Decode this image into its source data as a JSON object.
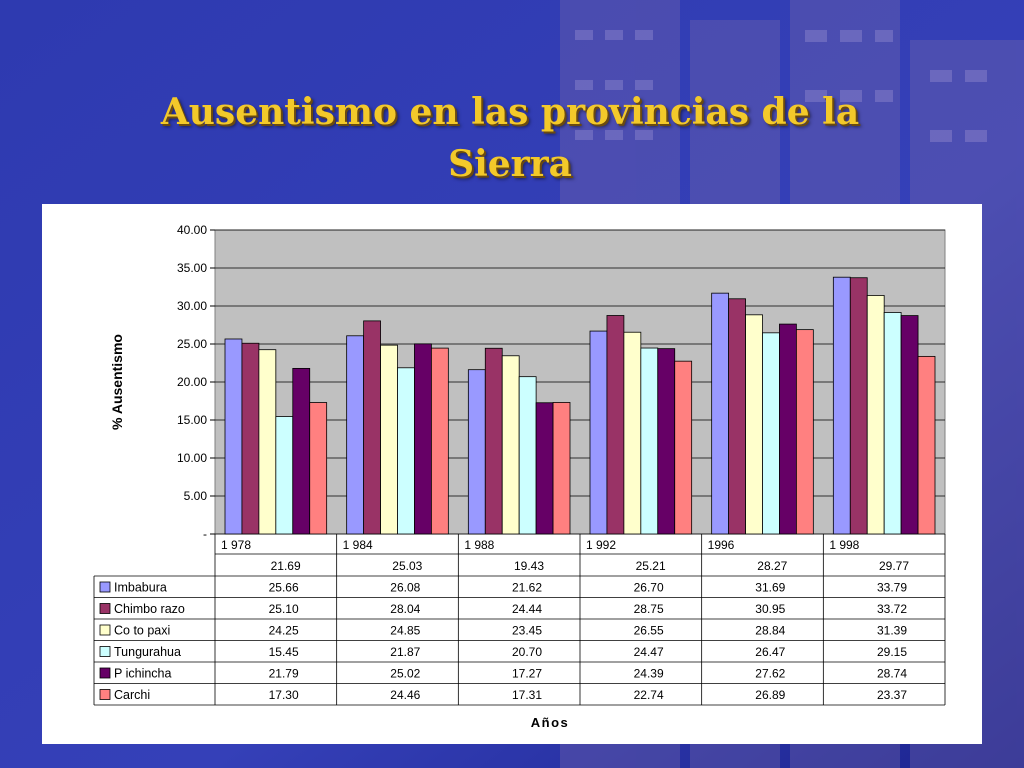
{
  "slide": {
    "title_line1": "Ausentismo en las provincias de la",
    "title_line2": "Sierra"
  },
  "colors": {
    "slide_background": "#2a35a8",
    "title": "#f3c92a",
    "plot_area": "#c0c0c0"
  },
  "chart_data": {
    "type": "bar",
    "ylabel": "% Ausentismo",
    "xlabel": "Años",
    "ylim": [
      0,
      40
    ],
    "yticks": [
      "40.00",
      "35.00",
      "30.00",
      "25.00",
      "20.00",
      "15.00",
      "10.00",
      "5.00",
      "-"
    ],
    "ytick_values": [
      40,
      35,
      30,
      25,
      20,
      15,
      10,
      5,
      0
    ],
    "grid": true,
    "legend": "data-table",
    "categories": [
      "1 978",
      "1 984",
      "1 988",
      "1 992",
      "1996",
      "1 998"
    ],
    "totals": [
      "21.69",
      "25.03",
      "19.43",
      "25.21",
      "28.27",
      "29.77"
    ],
    "series": [
      {
        "name": "Imbabura",
        "color": "#9999ff",
        "values": [
          25.66,
          26.08,
          21.62,
          26.7,
          31.69,
          33.79
        ],
        "labels": [
          "25.66",
          "26.08",
          "21.62",
          "26.70",
          "31.69",
          "33.79"
        ]
      },
      {
        "name": "Chimbo razo",
        "color": "#993366",
        "values": [
          25.1,
          28.04,
          24.44,
          28.75,
          30.95,
          33.72
        ],
        "labels": [
          "25.10",
          "28.04",
          "24.44",
          "28.75",
          "30.95",
          "33.72"
        ]
      },
      {
        "name": "Co to paxi",
        "color": "#ffffcc",
        "values": [
          24.25,
          24.85,
          23.45,
          26.55,
          28.84,
          31.39
        ],
        "labels": [
          "24.25",
          "24.85",
          "23.45",
          "26.55",
          "28.84",
          "31.39"
        ]
      },
      {
        "name": "Tungurahua",
        "color": "#ccffff",
        "values": [
          15.45,
          21.87,
          20.7,
          24.47,
          26.47,
          29.15
        ],
        "labels": [
          "15.45",
          "21.87",
          "20.70",
          "24.47",
          "26.47",
          "29.15"
        ]
      },
      {
        "name": "P ichincha",
        "color": "#660066",
        "values": [
          21.79,
          25.02,
          17.27,
          24.39,
          27.62,
          28.74
        ],
        "labels": [
          "21.79",
          "25.02",
          "17.27",
          "24.39",
          "27.62",
          "28.74"
        ]
      },
      {
        "name": "Carchi",
        "color": "#ff8080",
        "values": [
          17.3,
          24.46,
          17.31,
          22.74,
          26.89,
          23.37
        ],
        "labels": [
          "17.30",
          "24.46",
          "17.31",
          "22.74",
          "26.89",
          "23.37"
        ]
      }
    ]
  }
}
